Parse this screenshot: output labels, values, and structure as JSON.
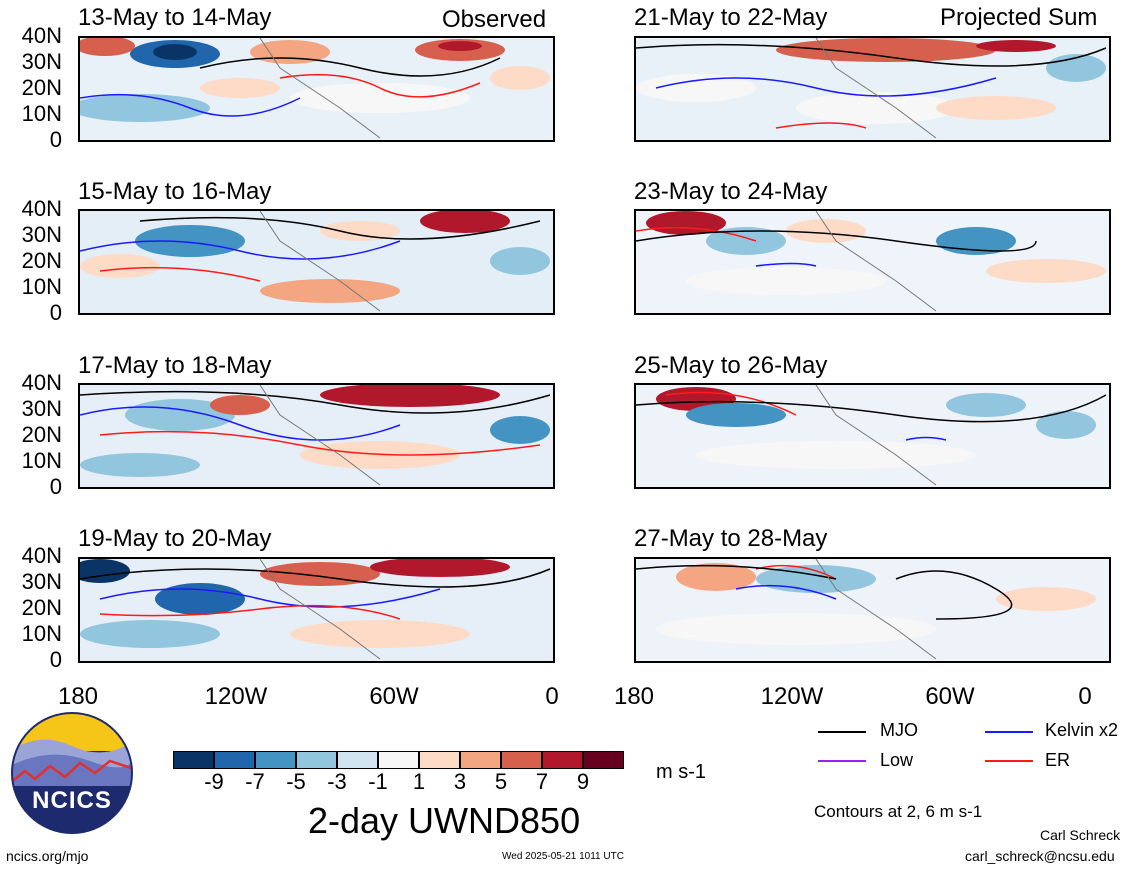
{
  "header": {
    "left_tag": "Observed",
    "right_tag": "Projected Sum"
  },
  "panels": {
    "left": [
      {
        "title": "13-May to 14-May"
      },
      {
        "title": "15-May to 16-May"
      },
      {
        "title": "17-May to 18-May"
      },
      {
        "title": "19-May to 20-May"
      }
    ],
    "right": [
      {
        "title": "21-May to 22-May"
      },
      {
        "title": "23-May to 24-May"
      },
      {
        "title": "25-May to 26-May"
      },
      {
        "title": "27-May to 28-May"
      }
    ]
  },
  "axes": {
    "y_labels": [
      "40N",
      "30N",
      "20N",
      "10N",
      "0"
    ],
    "x_labels": [
      "180",
      "120W",
      "60W",
      "0"
    ]
  },
  "colorbar": {
    "labels": [
      "-9",
      "-7",
      "-5",
      "-3",
      "-1",
      "1",
      "3",
      "5",
      "7",
      "9"
    ],
    "colors": [
      "#0b3466",
      "#2166ac",
      "#4393c3",
      "#92c5de",
      "#d1e5f0",
      "#f7f7f7",
      "#fddbc7",
      "#f4a582",
      "#d6604d",
      "#b2182b",
      "#67001f"
    ],
    "units": "m s-1",
    "title": "2-day UWND850"
  },
  "legend": {
    "items": [
      {
        "label": "MJO",
        "color": "#000000"
      },
      {
        "label": "Kelvin x2",
        "color": "#1a1aff"
      },
      {
        "label": "Low",
        "color": "#a020f0"
      },
      {
        "label": "ER",
        "color": "#ff1a1a"
      }
    ],
    "contours_note": "Contours at 2, 6 m s-1"
  },
  "logo": {
    "text": "NCICS"
  },
  "footer": {
    "url": "ncics.org/mjo",
    "timestamp": "Wed 2025-05-21 1011 UTC",
    "author": "Carl Schreck",
    "email": "carl_schreck@ncsu.edu"
  }
}
